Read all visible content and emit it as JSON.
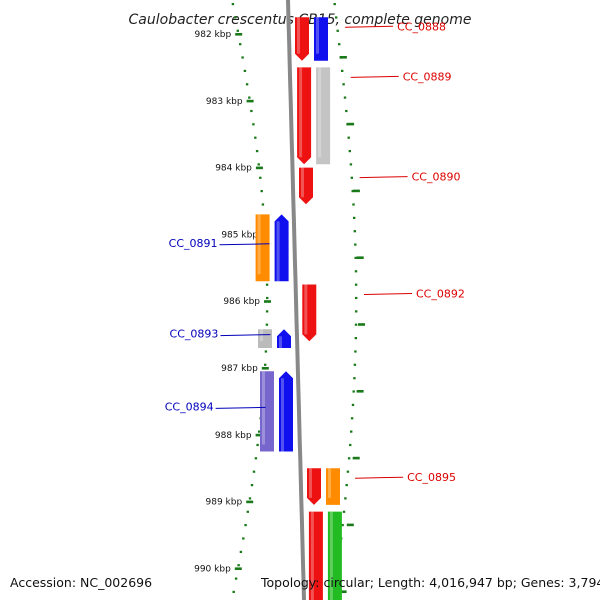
{
  "title": "Caulobacter crescentus CB15, complete genome",
  "footer": {
    "accession": "Accession: NC_002696",
    "summary": "Topology: circular; Length: 4,016,947 bp; Genes: 3,794"
  },
  "scale": {
    "unit": "kbp",
    "ticks": [
      "982 kbp",
      "983 kbp",
      "984 kbp",
      "985 kbp",
      "986 kbp",
      "987 kbp",
      "988 kbp",
      "989 kbp",
      "990 kbp"
    ],
    "tick_color": "#1a7a1a"
  },
  "colors": {
    "forward_label": "#dd0000",
    "reverse_label": "#0000bb",
    "backbone": "#888888"
  },
  "genes": [
    {
      "name": "CC_0888",
      "strand": "+",
      "start_kbp": 981.75,
      "end_kbp": 982.4,
      "features": [
        {
          "lane": 0,
          "color": "#ee1111",
          "arrow": true
        },
        {
          "lane": 1,
          "color": "#1010ee",
          "arrow": false
        }
      ]
    },
    {
      "name": "CC_0889",
      "strand": "+",
      "start_kbp": 982.5,
      "end_kbp": 983.95,
      "features": [
        {
          "lane": 0,
          "color": "#ee1111",
          "arrow": true
        },
        {
          "lane": 1,
          "color": "#c4c4c4",
          "arrow": false
        }
      ]
    },
    {
      "name": "CC_0890",
      "strand": "+",
      "start_kbp": 984.0,
      "end_kbp": 984.55,
      "features": [
        {
          "lane": 0,
          "color": "#ee1111",
          "arrow": true
        }
      ]
    },
    {
      "name": "CC_0891",
      "strand": "-",
      "start_kbp": 984.7,
      "end_kbp": 985.7,
      "features": [
        {
          "lane": 0,
          "color": "#ff8c00",
          "arrow": false
        },
        {
          "lane": 1,
          "color": "#1010ee",
          "arrow": true
        }
      ]
    },
    {
      "name": "CC_0892",
      "strand": "+",
      "start_kbp": 985.75,
      "end_kbp": 986.6,
      "features": [
        {
          "lane": 0,
          "color": "#ee1111",
          "arrow": true
        }
      ]
    },
    {
      "name": "CC_0893",
      "strand": "-",
      "start_kbp": 986.42,
      "end_kbp": 986.7,
      "features": [
        {
          "lane": 0,
          "color": "#bbbbbb",
          "arrow": false
        },
        {
          "lane": 1,
          "color": "#1010ee",
          "arrow": true
        }
      ]
    },
    {
      "name": "CC_0894",
      "strand": "-",
      "start_kbp": 987.05,
      "end_kbp": 988.25,
      "features": [
        {
          "lane": 0,
          "color": "#7766cc",
          "arrow": false
        },
        {
          "lane": 1,
          "color": "#1010ee",
          "arrow": true
        }
      ]
    },
    {
      "name": "CC_0895",
      "strand": "+",
      "start_kbp": 988.5,
      "end_kbp": 989.05,
      "features": [
        {
          "lane": 0,
          "color": "#ee1111",
          "arrow": true
        },
        {
          "lane": 1,
          "color": "#ff8c00",
          "arrow": false
        }
      ]
    },
    {
      "name": "",
      "strand": "+",
      "start_kbp": 989.15,
      "end_kbp": 990.6,
      "features": [
        {
          "lane": 0,
          "color": "#ee1111",
          "arrow": false
        },
        {
          "lane": 1,
          "color": "#22bb22",
          "arrow": false
        }
      ]
    }
  ]
}
